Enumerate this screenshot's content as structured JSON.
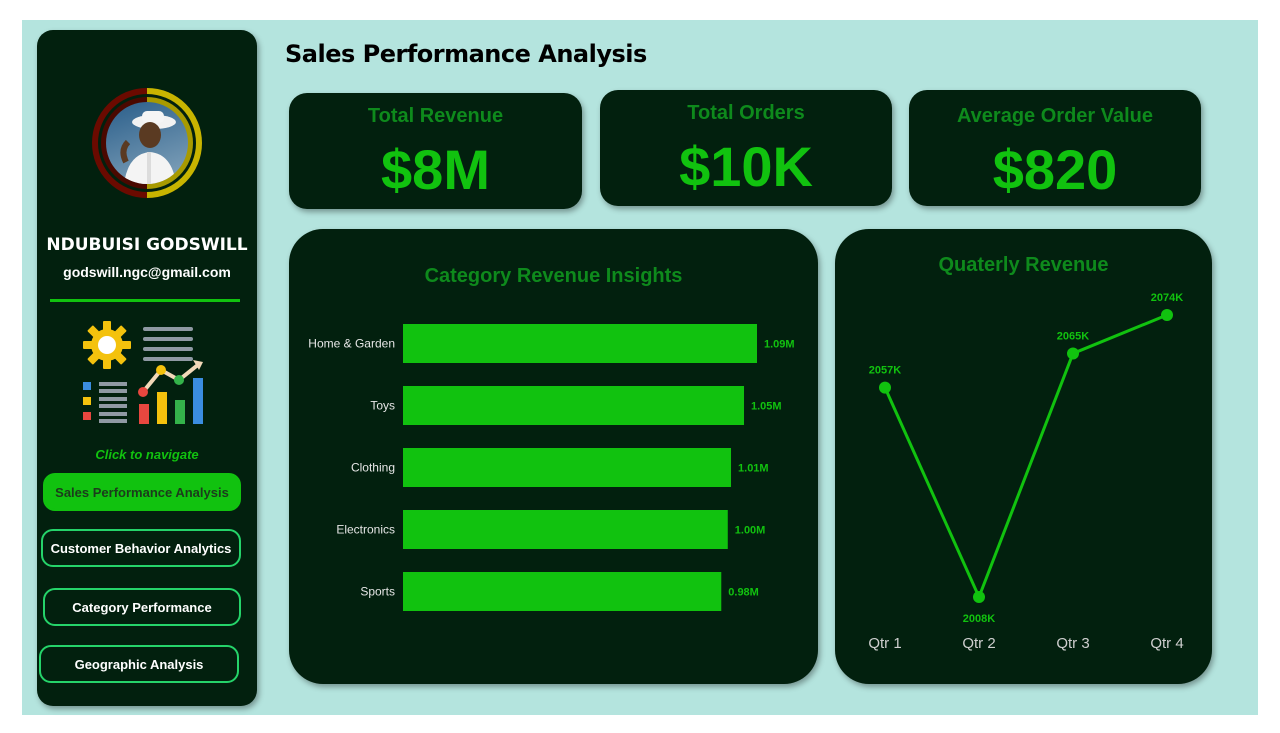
{
  "header": {
    "title": "Sales Performance Analysis"
  },
  "profile": {
    "name": "NDUBUISI GODSWILL",
    "email": "godswill.ngc@gmail.com"
  },
  "nav": {
    "hint": "Click to navigate",
    "items": [
      {
        "label": "Sales Performance Analysis",
        "active": true
      },
      {
        "label": "Customer Behavior Analytics",
        "active": false
      },
      {
        "label": "Category Performance",
        "active": false
      },
      {
        "label": "Geographic Analysis",
        "active": false
      }
    ]
  },
  "kpis": [
    {
      "label": "Total Revenue",
      "value": "$8M"
    },
    {
      "label": "Total Orders",
      "value": "$10K"
    },
    {
      "label": "Average Order Value",
      "value": "$820"
    }
  ],
  "colors": {
    "accent": "#11c20f",
    "panel": "#02200e",
    "background": "#b4e4de",
    "title_green": "#0e8a1c"
  },
  "icons": [
    "gear-icon",
    "list-icon",
    "bar-chart-icon",
    "trend-arrow-icon"
  ],
  "chart_data": [
    {
      "type": "bar",
      "orientation": "horizontal",
      "title": "Category Revenue Insights",
      "categories": [
        "Home & Garden",
        "Toys",
        "Clothing",
        "Electronics",
        "Sports"
      ],
      "values": [
        1.09,
        1.05,
        1.01,
        1.0,
        0.98
      ],
      "labels": [
        "1.09M",
        "1.05M",
        "1.01M",
        "1.00M",
        "0.98M"
      ],
      "unit": "M",
      "xlim": [
        0,
        1.09
      ]
    },
    {
      "type": "line",
      "title": "Quaterly Revenue",
      "categories": [
        "Qtr 1",
        "Qtr 2",
        "Qtr 3",
        "Qtr 4"
      ],
      "values": [
        2057,
        2008,
        2065,
        2074
      ],
      "labels": [
        "2057K",
        "2008K",
        "2065K",
        "2074K"
      ],
      "unit": "K",
      "ylim": [
        2008,
        2074
      ]
    }
  ]
}
